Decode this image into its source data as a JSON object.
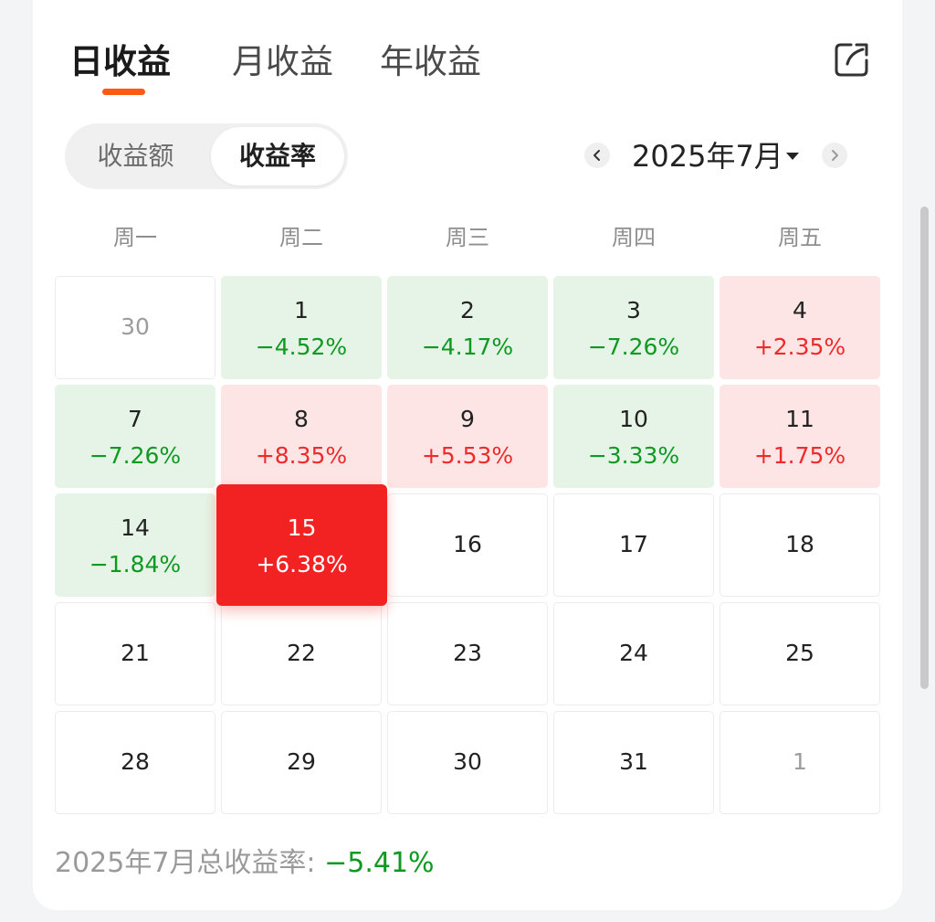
{
  "tabs": [
    {
      "label": "日收益",
      "active": true
    },
    {
      "label": "月收益",
      "active": false
    },
    {
      "label": "年收益",
      "active": false
    }
  ],
  "icons": {
    "share": "share-icon",
    "prev": "chevron-left-icon",
    "next": "chevron-right-icon",
    "dropdown": "caret-down-icon"
  },
  "segmented": {
    "options": [
      "收益额",
      "收益率"
    ],
    "selected": "收益率"
  },
  "month_nav": {
    "label": "2025年7月"
  },
  "weekdays": [
    "周一",
    "周二",
    "周三",
    "周四",
    "周五"
  ],
  "calendar": {
    "rows": [
      [
        {
          "day": "30",
          "rate": "",
          "state": "muted"
        },
        {
          "day": "1",
          "rate": "−4.52%",
          "state": "down"
        },
        {
          "day": "2",
          "rate": "−4.17%",
          "state": "down"
        },
        {
          "day": "3",
          "rate": "−7.26%",
          "state": "down"
        },
        {
          "day": "4",
          "rate": "+2.35%",
          "state": "up"
        }
      ],
      [
        {
          "day": "7",
          "rate": "−7.26%",
          "state": "down"
        },
        {
          "day": "8",
          "rate": "+8.35%",
          "state": "up"
        },
        {
          "day": "9",
          "rate": "+5.53%",
          "state": "up"
        },
        {
          "day": "10",
          "rate": "−3.33%",
          "state": "down"
        },
        {
          "day": "11",
          "rate": "+1.75%",
          "state": "up"
        }
      ],
      [
        {
          "day": "14",
          "rate": "−1.84%",
          "state": "down"
        },
        {
          "day": "15",
          "rate": "+6.38%",
          "state": "selected"
        },
        {
          "day": "16",
          "rate": "",
          "state": "plain"
        },
        {
          "day": "17",
          "rate": "",
          "state": "plain"
        },
        {
          "day": "18",
          "rate": "",
          "state": "plain"
        }
      ],
      [
        {
          "day": "21",
          "rate": "",
          "state": "plain"
        },
        {
          "day": "22",
          "rate": "",
          "state": "plain"
        },
        {
          "day": "23",
          "rate": "",
          "state": "plain"
        },
        {
          "day": "24",
          "rate": "",
          "state": "plain"
        },
        {
          "day": "25",
          "rate": "",
          "state": "plain"
        }
      ],
      [
        {
          "day": "28",
          "rate": "",
          "state": "plain"
        },
        {
          "day": "29",
          "rate": "",
          "state": "plain"
        },
        {
          "day": "30",
          "rate": "",
          "state": "plain"
        },
        {
          "day": "31",
          "rate": "",
          "state": "plain"
        },
        {
          "day": "1",
          "rate": "",
          "state": "muted"
        }
      ]
    ]
  },
  "summary": {
    "label": "2025年7月总收益率:",
    "value": "−5.41%"
  },
  "colors": {
    "accent": "#ff5a14",
    "gain": "#ee2a2a",
    "loss": "#0e9a22",
    "selected": "#f22222"
  }
}
